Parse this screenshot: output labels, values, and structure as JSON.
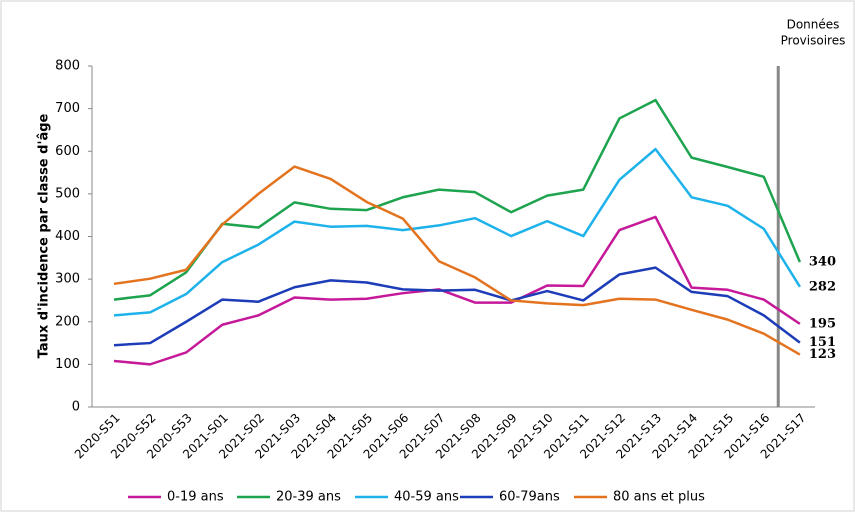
{
  "chart_data": {
    "type": "line",
    "y_label": "Taux d'incidence par classe d'âge",
    "annotation": [
      "Données",
      "Provisoires"
    ],
    "categories": [
      "2020-S51",
      "2020-S52",
      "2020-S53",
      "2021-S01",
      "2021-S02",
      "2021-S03",
      "2021-S04",
      "2021-S05",
      "2021-S06",
      "2021-S07",
      "2021-S08",
      "2021-S09",
      "2021-S10",
      "2021-S11",
      "2021-S12",
      "2021-S13",
      "2021-S14",
      "2021-S15",
      "2021-S16",
      "2021-S17"
    ],
    "series": [
      {
        "name": "0-19 ans",
        "color": "#c5199a",
        "values": [
          108,
          100,
          128,
          193,
          215,
          257,
          252,
          254,
          267,
          276,
          245,
          245,
          285,
          284,
          415,
          446,
          280,
          275,
          252,
          195
        ]
      },
      {
        "name": "20-39 ans",
        "color": "#1ea34f",
        "values": [
          252,
          262,
          316,
          430,
          421,
          480,
          465,
          462,
          492,
          510,
          504,
          457,
          496,
          510,
          677,
          720,
          585,
          563,
          540,
          340
        ]
      },
      {
        "name": "40-59 ans",
        "color": "#1eb2ea",
        "values": [
          215,
          222,
          265,
          340,
          381,
          435,
          423,
          425,
          415,
          426,
          443,
          401,
          436,
          401,
          533,
          605,
          492,
          472,
          418,
          282
        ]
      },
      {
        "name": "60-79ans",
        "color": "#1c3cb8",
        "values": [
          145,
          150,
          200,
          252,
          247,
          281,
          297,
          292,
          276,
          273,
          275,
          250,
          272,
          250,
          311,
          327,
          270,
          260,
          215,
          151
        ]
      },
      {
        "name": "80 ans et plus",
        "color": "#e3731f",
        "values": [
          289,
          301,
          322,
          428,
          500,
          564,
          535,
          481,
          442,
          342,
          304,
          250,
          243,
          239,
          254,
          252,
          228,
          205,
          172,
          123
        ]
      }
    ],
    "ylim": [
      0,
      800
    ],
    "yticks": [
      0,
      100,
      200,
      300,
      400,
      500,
      600,
      700,
      800
    ],
    "grid": false,
    "legend": "bottom"
  }
}
